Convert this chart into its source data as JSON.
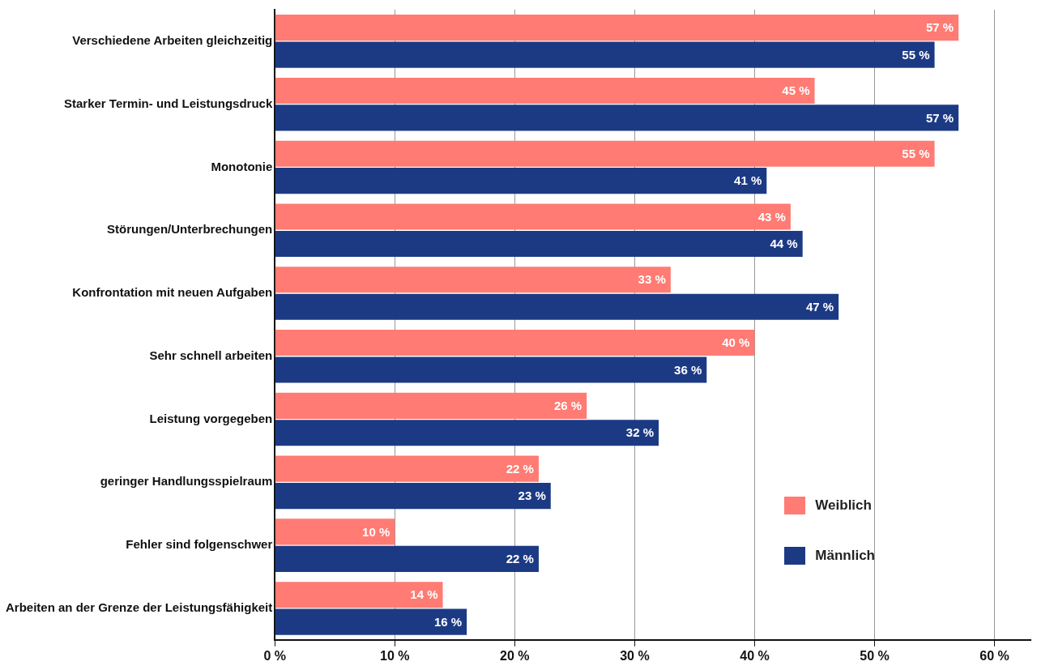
{
  "chart_data": {
    "type": "bar",
    "orientation": "horizontal",
    "categories": [
      "Verschiedene Arbeiten gleichzeitig",
      "Starker Termin- und Leistungsdruck",
      "Monotonie",
      "Störungen/Unterbrechungen",
      "Konfrontation mit neuen Aufgaben",
      "Sehr schnell arbeiten",
      "Leistung vorgegeben",
      "geringer Handlungsspielraum",
      "Fehler sind folgenschwer",
      "Arbeiten an der Grenze der Leistungsfähigkeit"
    ],
    "series": [
      {
        "name": "Weiblich",
        "color": "#ff7b73",
        "values": [
          57,
          45,
          55,
          43,
          33,
          40,
          26,
          22,
          10,
          14
        ],
        "value_labels": [
          "57 %",
          "45 %",
          "55 %",
          "43 %",
          "33 %",
          "40 %",
          "26 %",
          "22 %",
          "10 %",
          "14 %"
        ]
      },
      {
        "name": "Männlich",
        "color": "#1c3a84",
        "values": [
          55,
          57,
          41,
          44,
          47,
          36,
          32,
          23,
          22,
          16
        ],
        "value_labels": [
          "55 %",
          "57 %",
          "41 %",
          "44 %",
          "47 %",
          "36 %",
          "32 %",
          "23 %",
          "22 %",
          "16 %"
        ]
      }
    ],
    "xlim": [
      0,
      63
    ],
    "xticks": [
      {
        "value": 0,
        "label": "0 %"
      },
      {
        "value": 10,
        "label": "10 %"
      },
      {
        "value": 20,
        "label": "20 %"
      },
      {
        "value": 30,
        "label": "30 %"
      },
      {
        "value": 40,
        "label": "40 %"
      },
      {
        "value": 50,
        "label": "50 %"
      },
      {
        "value": 60,
        "label": "60 %"
      }
    ],
    "grid": "x",
    "legend": "bottom right"
  }
}
